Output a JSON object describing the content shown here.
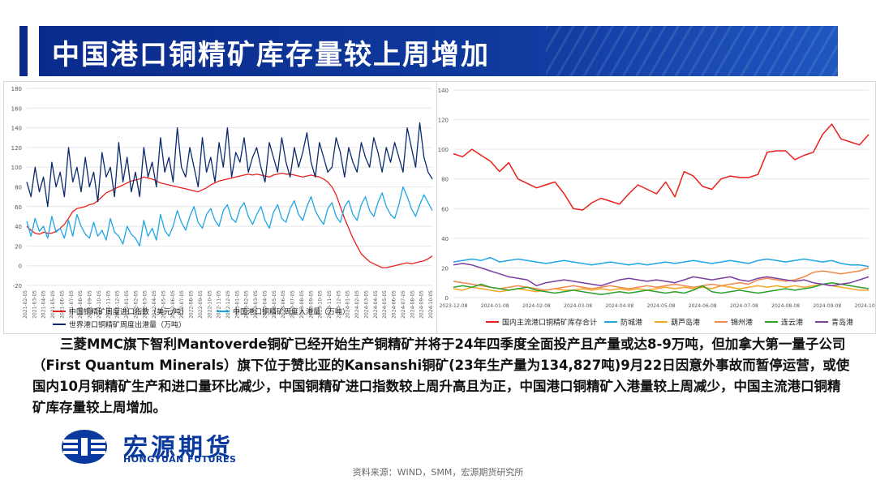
{
  "slide": {
    "title": "中国港口铜精矿库存量较上周增加",
    "body": "三菱MMC旗下智利Mantoverde铜矿已经开始生产铜精矿并将于24年四季度全面投产且产量或达8-9万吨，但加拿大第一量子公司（First Quantum Minerals）旗下位于赞比亚的Kansanshi铜矿(23年生产量为134,827吨)9月22日因意外事故而暂停运营，或使国内10月铜精矿生产和进口量环比减少，中国铜精矿进口指数较上周升高且为正，中国港口铜精矿入港量较上周减少，中国主流港口铜精矿库存量较上周增加。",
    "source": "资料来源：WIND，SMM，宏源期货研究所",
    "logo_cn": "宏源期货",
    "logo_en": "HONGYUAN FUTURES",
    "colors": {
      "title_band": "#0a2b8c",
      "logo": "#0a3a9e"
    }
  },
  "chart_data": [
    {
      "type": "line",
      "x_tick_labels": [
        "2021-02-05",
        "2021-03-05",
        "2021-04-05",
        "2021-05-05",
        "2021-06-05",
        "2021-07-05",
        "2021-08-05",
        "2021-09-05",
        "2021-10-05",
        "2021-11-05",
        "2021-12-05",
        "2022-01-05",
        "2022-02-05",
        "2022-03-05",
        "2022-04-05",
        "2022-05-05",
        "2022-06-05",
        "2022-07-05",
        "2022-08-05",
        "2022-09-05",
        "2022-10-05",
        "2022-11-05",
        "2022-12-05",
        "2023-01-05",
        "2023-02-05",
        "2023-03-05",
        "2023-04-05",
        "2023-05-05",
        "2023-06-05",
        "2023-07-05",
        "2023-08-05",
        "2023-09-05",
        "2023-10-05",
        "2023-11-05",
        "2023-12-05",
        "2024-01-05",
        "2024-02-05",
        "2024-03-05",
        "2024-04-05",
        "2024-05-05",
        "2024-06-05",
        "2024-07-05",
        "2024-08-05",
        "2024-09-05",
        "2024-10-05"
      ],
      "y_ticks": [
        -20,
        0,
        20,
        40,
        60,
        80,
        100,
        120,
        140,
        160,
        180
      ],
      "ylim": [
        -20,
        180
      ],
      "legend_position": "bottom",
      "series": [
        {
          "name": "中国铜精矿周度进口指数（美元/吨）",
          "color": "#e8201c",
          "values": [
            40,
            36,
            33,
            32,
            34,
            33,
            33,
            35,
            38,
            42,
            48,
            55,
            58,
            59,
            60,
            62,
            63,
            66,
            70,
            74,
            76,
            78,
            80,
            82,
            84,
            86,
            87,
            88,
            90,
            89,
            88,
            86,
            84,
            83,
            82,
            81,
            80,
            79,
            78,
            77,
            76,
            75,
            77,
            79,
            82,
            84,
            86,
            87,
            88,
            89,
            90,
            91,
            92,
            93,
            92,
            93,
            92,
            91,
            90,
            92,
            93,
            94,
            93,
            93,
            92,
            91,
            90,
            91,
            92,
            91,
            90,
            88,
            85,
            80,
            72,
            60,
            48,
            38,
            28,
            20,
            12,
            8,
            4,
            2,
            0,
            -2,
            -2,
            -1,
            0,
            1,
            2,
            3,
            2,
            3,
            4,
            5,
            7,
            10
          ]
        },
        {
          "name": "中国港口铜精矿周度入港量（万吨）",
          "color": "#1ea5e4",
          "values": [
            45,
            30,
            48,
            35,
            40,
            28,
            50,
            34,
            38,
            28,
            46,
            30,
            52,
            40,
            32,
            28,
            44,
            30,
            36,
            26,
            48,
            34,
            30,
            22,
            40,
            32,
            28,
            20,
            46,
            30,
            38,
            26,
            52,
            36,
            30,
            40,
            56,
            44,
            36,
            50,
            60,
            44,
            38,
            52,
            58,
            46,
            40,
            56,
            62,
            48,
            44,
            58,
            64,
            50,
            42,
            52,
            60,
            46,
            38,
            54,
            62,
            48,
            44,
            58,
            66,
            52,
            46,
            60,
            70,
            56,
            48,
            42,
            58,
            64,
            50,
            44,
            60,
            66,
            52,
            46,
            62,
            70,
            56,
            50,
            64,
            74,
            60,
            52,
            48,
            62,
            80,
            70,
            58,
            50,
            62,
            72,
            64,
            56
          ]
        },
        {
          "name": "世界港口铜精矿周度出港量（万吨）",
          "color": "#0b2a6b",
          "values": [
            85,
            70,
            100,
            75,
            90,
            60,
            105,
            80,
            95,
            70,
            120,
            85,
            100,
            75,
            110,
            80,
            95,
            65,
            115,
            90,
            100,
            70,
            125,
            85,
            110,
            75,
            95,
            70,
            120,
            90,
            105,
            80,
            130,
            95,
            110,
            85,
            140,
            100,
            90,
            120,
            100,
            80,
            130,
            95,
            110,
            85,
            125,
            100,
            140,
            90,
            115,
            105,
            130,
            95,
            110,
            120,
            100,
            85,
            125,
            110,
            95,
            130,
            105,
            90,
            120,
            100,
            115,
            135,
            105,
            90,
            125,
            110,
            95,
            100,
            130,
            115,
            90,
            120,
            105,
            95,
            125,
            110,
            100,
            130,
            115,
            95,
            120,
            105,
            125,
            110,
            95,
            140,
            120,
            100,
            145,
            110,
            95,
            88
          ]
        }
      ]
    },
    {
      "type": "line",
      "x_tick_labels": [
        "2023-12-08",
        "2024-01-08",
        "2024-02-08",
        "2024-03-08",
        "2024-04-08",
        "2024-05-08",
        "2024-06-08",
        "2024-07-08",
        "2024-08-08",
        "2024-09-08",
        "2024-10-08"
      ],
      "y_ticks": [
        0,
        20,
        40,
        60,
        80,
        100,
        120,
        140
      ],
      "ylim": [
        0,
        140
      ],
      "legend_position": "bottom",
      "series": [
        {
          "name": "国内主流港口铜精矿库存合计",
          "color": "#e8201c",
          "values": [
            97,
            95,
            100,
            96,
            92,
            85,
            91,
            80,
            77,
            74,
            76,
            78,
            70,
            60,
            59,
            64,
            67,
            65,
            63,
            70,
            76,
            73,
            70,
            78,
            68,
            85,
            82,
            75,
            73,
            80,
            82,
            81,
            81,
            83,
            98,
            99,
            99,
            93,
            96,
            98,
            110,
            117,
            107,
            105,
            103,
            110
          ]
        },
        {
          "name": "防城港",
          "color": "#1ea5e4",
          "values": [
            24,
            25,
            26,
            25,
            27,
            24,
            25,
            26,
            25,
            24,
            23,
            24,
            25,
            24,
            23,
            22,
            23,
            24,
            23,
            22,
            23,
            22,
            23,
            24,
            23,
            24,
            25,
            24,
            23,
            24,
            25,
            24,
            23,
            25,
            26,
            25,
            24,
            25,
            26,
            25,
            24,
            25,
            23,
            22,
            22,
            21
          ]
        },
        {
          "name": "葫芦岛港",
          "color": "#f5a623",
          "values": [
            6,
            5,
            7,
            6,
            5,
            4,
            5,
            6,
            5,
            4,
            5,
            6,
            5,
            5,
            6,
            5,
            6,
            5,
            6,
            5,
            6,
            5,
            6,
            7,
            6,
            7,
            6,
            7,
            6,
            8,
            7,
            6,
            7,
            8,
            7,
            8,
            7,
            8,
            7,
            8,
            9,
            8,
            7,
            6,
            5,
            5
          ]
        },
        {
          "name": "锦州港",
          "color": "#f08a4b",
          "values": [
            11,
            10,
            9,
            8,
            7,
            6,
            7,
            8,
            7,
            6,
            5,
            6,
            7,
            8,
            7,
            6,
            7,
            8,
            7,
            6,
            7,
            8,
            7,
            8,
            9,
            8,
            7,
            8,
            9,
            8,
            9,
            10,
            9,
            12,
            13,
            12,
            11,
            12,
            14,
            17,
            18,
            17,
            16,
            17,
            18,
            20
          ]
        },
        {
          "name": "连云港",
          "color": "#2ca02c",
          "values": [
            7,
            8,
            7,
            9,
            7,
            6,
            5,
            6,
            7,
            5,
            4,
            3,
            4,
            5,
            4,
            3,
            2,
            3,
            4,
            3,
            4,
            5,
            4,
            3,
            4,
            3,
            5,
            8,
            4,
            3,
            4,
            5,
            4,
            3,
            4,
            5,
            6,
            5,
            6,
            7,
            9,
            10,
            9,
            8,
            7,
            6
          ]
        },
        {
          "name": "青岛港",
          "color": "#7b3fa0",
          "values": [
            22,
            23,
            22,
            20,
            18,
            16,
            14,
            13,
            12,
            8,
            10,
            11,
            12,
            11,
            10,
            9,
            8,
            10,
            12,
            13,
            12,
            11,
            12,
            11,
            10,
            12,
            14,
            13,
            12,
            13,
            14,
            12,
            11,
            13,
            14,
            13,
            12,
            11,
            12,
            10,
            9,
            8,
            9,
            10,
            12,
            14
          ]
        }
      ]
    }
  ]
}
